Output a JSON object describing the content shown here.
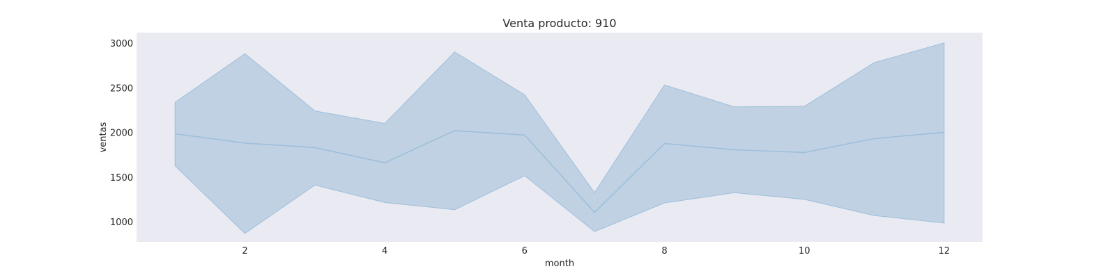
{
  "chart_data": {
    "type": "line",
    "title": "Venta producto: 910",
    "xlabel": "month",
    "ylabel": "ventas",
    "x": [
      1,
      2,
      3,
      4,
      5,
      6,
      7,
      8,
      9,
      10,
      11,
      12
    ],
    "xticks": [
      2,
      4,
      6,
      8,
      10,
      12
    ],
    "yticks": [
      1000,
      1500,
      2000,
      2500,
      3000
    ],
    "xlim": [
      0.45,
      12.55
    ],
    "ylim": [
      780,
      3120
    ],
    "grid": false,
    "series": [
      {
        "values": [
          1990,
          1885,
          1835,
          1665,
          2025,
          1975,
          1110,
          1880,
          1810,
          1780,
          1935,
          2005
        ],
        "lower": [
          1630,
          875,
          1415,
          1220,
          1140,
          1520,
          895,
          1215,
          1330,
          1255,
          1075,
          990
        ],
        "upper": [
          2340,
          2885,
          2245,
          2105,
          2905,
          2425,
          1330,
          2535,
          2290,
          2295,
          2785,
          3005
        ]
      }
    ],
    "colors": {
      "plot_background": "#eaeaf2",
      "line": "#9ebfda",
      "band_fill": "#a7c1dc",
      "band_edge": "#9ebfda"
    }
  }
}
